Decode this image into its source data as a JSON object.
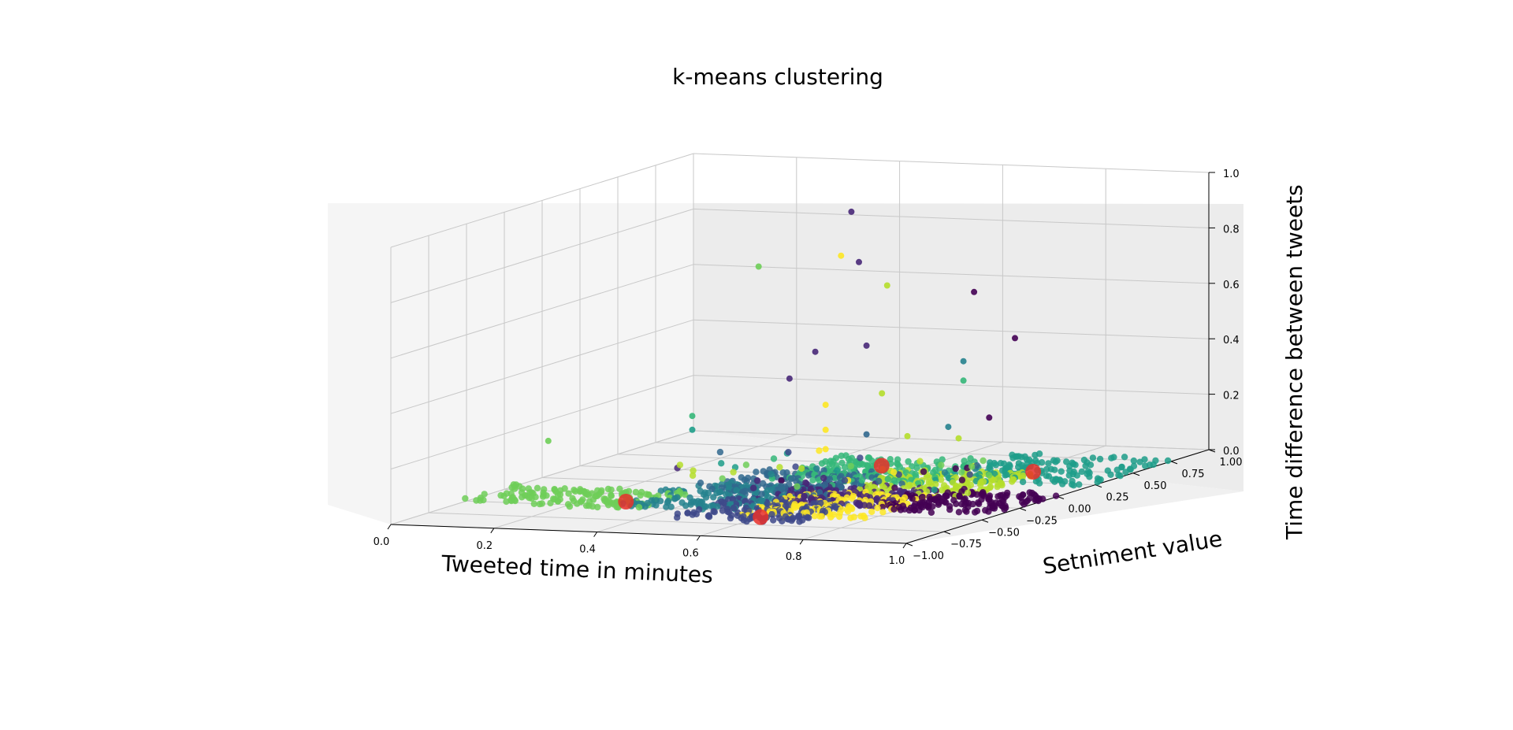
{
  "chart_data": {
    "type": "scatter",
    "projection": "3d",
    "title": "k-means clustering",
    "xlabel": "Tweeted time in minutes",
    "ylabel": "Setniment value",
    "zlabel": "Time difference between tweets",
    "xlim": [
      0,
      1
    ],
    "ylim": [
      -1,
      1
    ],
    "zlim": [
      0,
      1
    ],
    "x_ticks": [
      "0.0",
      "0.2",
      "0.4",
      "0.6",
      "0.8",
      "1.0"
    ],
    "y_ticks": [
      "−1.00",
      "−0.75",
      "−0.50",
      "−0.25",
      "0.00",
      "0.25",
      "0.50",
      "0.75",
      "1.00"
    ],
    "z_ticks": [
      "0.0",
      "0.2",
      "0.4",
      "0.6",
      "0.8",
      "1.0"
    ],
    "grid": true,
    "cluster_colors": [
      "#440154",
      "#482878",
      "#3e4989",
      "#31688e",
      "#26828e",
      "#1f9e89",
      "#35b779",
      "#6ece58",
      "#b5de2b",
      "#fde725"
    ],
    "centroid_color": "#e8302a",
    "notable_points": [
      {
        "x": 0.6,
        "y": 0.0,
        "z": 1.0,
        "color": "#482878"
      },
      {
        "x": 0.58,
        "y": 0.0,
        "z": 0.84,
        "color": "#fde725"
      },
      {
        "x": 0.6,
        "y": 0.05,
        "z": 0.81,
        "color": "#482878"
      },
      {
        "x": 0.42,
        "y": 0.0,
        "z": 0.79,
        "color": "#6ece58"
      },
      {
        "x": 0.64,
        "y": 0.1,
        "z": 0.72,
        "color": "#b5de2b"
      },
      {
        "x": 0.75,
        "y": 0.3,
        "z": 0.67,
        "color": "#440154"
      },
      {
        "x": 0.53,
        "y": 0.0,
        "z": 0.49,
        "color": "#482878"
      },
      {
        "x": 0.6,
        "y": 0.1,
        "z": 0.5,
        "color": "#482878"
      },
      {
        "x": 0.8,
        "y": 0.4,
        "z": 0.49,
        "color": "#440154"
      },
      {
        "x": 0.48,
        "y": 0.0,
        "z": 0.39,
        "color": "#482878"
      },
      {
        "x": 0.7,
        "y": 0.4,
        "z": 0.4,
        "color": "#26828e"
      },
      {
        "x": 0.7,
        "y": 0.4,
        "z": 0.33,
        "color": "#35b779"
      },
      {
        "x": 0.63,
        "y": 0.1,
        "z": 0.33,
        "color": "#b5de2b"
      },
      {
        "x": 0.55,
        "y": 0.0,
        "z": 0.3,
        "color": "#fde725"
      },
      {
        "x": 0.35,
        "y": -0.2,
        "z": 0.28,
        "color": "#35b779"
      },
      {
        "x": 0.35,
        "y": -0.2,
        "z": 0.23,
        "color": "#1f9e89"
      },
      {
        "x": 0.75,
        "y": 0.4,
        "z": 0.2,
        "color": "#440154"
      },
      {
        "x": 0.55,
        "y": 0.0,
        "z": 0.21,
        "color": "#fde725"
      },
      {
        "x": 0.7,
        "y": 0.3,
        "z": 0.18,
        "color": "#26828e"
      },
      {
        "x": 0.1,
        "y": -0.3,
        "z": 0.19,
        "color": "#6ece58"
      },
      {
        "x": 0.65,
        "y": 0.2,
        "z": 0.16,
        "color": "#b5de2b"
      },
      {
        "x": 0.6,
        "y": 0.1,
        "z": 0.18,
        "color": "#31688e"
      },
      {
        "x": 0.55,
        "y": 0.0,
        "z": 0.14,
        "color": "#fde725"
      },
      {
        "x": 0.72,
        "y": 0.3,
        "z": 0.14,
        "color": "#b5de2b"
      }
    ],
    "centroids": [
      {
        "x": 0.28,
        "y": -0.4,
        "z": 0.0
      },
      {
        "x": 0.6,
        "y": -0.6,
        "z": 0.0
      },
      {
        "x": 0.6,
        "y": 0.2,
        "z": 0.05
      },
      {
        "x": 0.85,
        "y": 0.35,
        "z": 0.02
      }
    ]
  }
}
